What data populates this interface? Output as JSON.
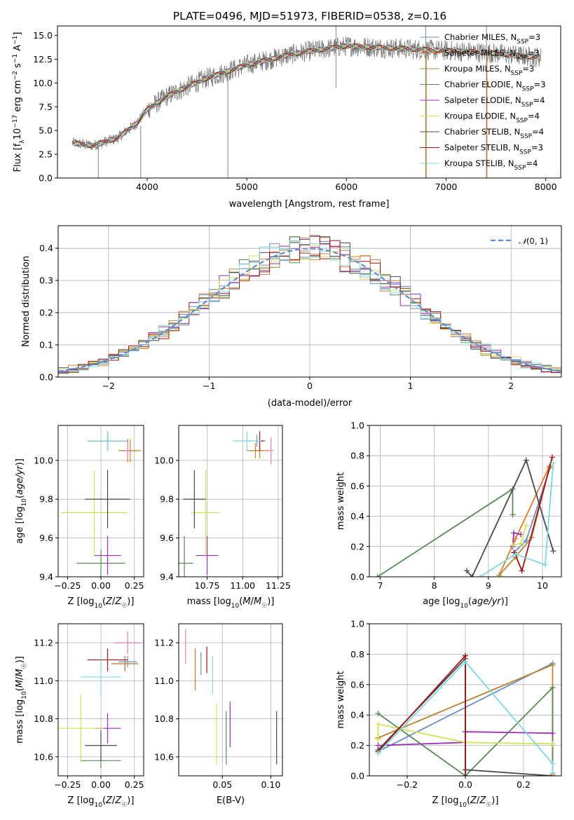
{
  "figure": {
    "title": "PLATE=0496, MJD=51973, FIBERID=0538, z=0.16"
  },
  "colors": {
    "Chabrier MILES": "#6b8cc2",
    "Salpeter MILES": "#e07b2e",
    "Kroupa MILES": "#b5893a",
    "Chabrier ELODIE": "#5a8a5a",
    "Salpeter ELODIE": "#9a2fb5",
    "Kroupa ELODIE": "#d4e25a",
    "Chabrier STELIB": "#4a4a4a",
    "Salpeter STELIB": "#a01515",
    "Kroupa STELIB": "#7fd9de",
    "pink": "#e87fb4",
    "data": "#7a7a7a",
    "normal": "#5b8bd9",
    "grid": "#b0b0b0"
  },
  "chart_data": [
    {
      "id": "spectrum",
      "type": "line",
      "title": "PLATE=0496, MJD=51973, FIBERID=0538, z=0.16",
      "xlabel": "wavelength [Angstrom, rest frame]",
      "ylabel": "Flux [f_λ 10^-17 erg cm^-2 s^-1 A^-1]",
      "xlim": [
        3100,
        8150
      ],
      "ylim": [
        0,
        16
      ],
      "xticks": [
        4000,
        5000,
        6000,
        7000,
        8000
      ],
      "yticks": [
        0.0,
        2.5,
        5.0,
        7.5,
        10.0,
        12.5,
        15.0
      ],
      "grid": false,
      "legend": "right",
      "legend_entries": [
        {
          "model": "Chabrier MILES",
          "nssp": "3"
        },
        {
          "model": "Salpeter MILES",
          "nssp": "3"
        },
        {
          "model": "Kroupa MILES",
          "nssp": "3"
        },
        {
          "model": "Chabrier ELODIE",
          "nssp": "3"
        },
        {
          "model": "Salpeter ELODIE",
          "nssp": "4"
        },
        {
          "model": "Kroupa ELODIE",
          "nssp": "4"
        },
        {
          "model": "Chabrier STELIB",
          "nssp": "4"
        },
        {
          "model": "Salpeter STELIB",
          "nssp": "3"
        },
        {
          "model": "Kroupa STELIB",
          "nssp": "4"
        }
      ],
      "continuum": {
        "x": [
          3250,
          3450,
          3700,
          3900,
          4000,
          4200,
          4400,
          4600,
          4800,
          5000,
          5200,
          5400,
          5600,
          5800,
          6000,
          6200,
          6400,
          6600,
          6800,
          7000,
          7200,
          7400,
          7600,
          7800,
          7950
        ],
        "y": [
          3.7,
          3.4,
          4.2,
          5.8,
          7.2,
          8.6,
          9.6,
          10.5,
          11.2,
          11.9,
          12.4,
          12.9,
          13.3,
          13.6,
          13.9,
          13.8,
          13.7,
          13.6,
          13.5,
          13.4,
          13.3,
          13.2,
          13.0,
          12.8,
          12.7
        ]
      },
      "data_spikes": [
        {
          "x": 3510,
          "y0": 0,
          "y1": 4.0
        },
        {
          "x": 3935,
          "y0": 0,
          "y1": 5.5
        },
        {
          "x": 4810,
          "y0": 0,
          "y1": 11.0
        },
        {
          "x": 5895,
          "y0": 9.5,
          "y1": 16
        },
        {
          "x": 6795,
          "y0": 0,
          "y1": 16
        },
        {
          "x": 7405,
          "y0": 0,
          "y1": 16
        }
      ]
    },
    {
      "id": "residuals",
      "type": "histogram",
      "xlabel": "(data-model)/error",
      "ylabel": "Normed distribution",
      "xlim": [
        -2.5,
        2.5
      ],
      "ylim": [
        0,
        0.47
      ],
      "xticks": [
        -2,
        -1,
        0,
        1,
        2
      ],
      "yticks": [
        0.0,
        0.1,
        0.2,
        0.3,
        0.4
      ],
      "grid": true,
      "legend": "top-right",
      "legend_label": "𝒩(0, 1)",
      "bin_width": 0.1
    },
    {
      "id": "age-vs-Z",
      "type": "errorbar",
      "xlabel": "Z [log10(Z/Z☉)]",
      "ylabel": "age [log10(age/yr)]",
      "xlim": [
        -0.32,
        0.32
      ],
      "ylim": [
        9.4,
        10.18
      ],
      "xticks": [
        "-0.25",
        "0.00",
        "0.25"
      ],
      "yticks": [
        "9.4",
        "9.6",
        "9.8",
        "10.0"
      ],
      "grid": true,
      "points": [
        {
          "model": "Chabrier MILES",
          "x": 0.05,
          "xerr": 0.15,
          "y": 10.1,
          "yerr": 0.05
        },
        {
          "model": "Salpeter MILES",
          "x": 0.22,
          "xerr": 0.08,
          "y": 10.05,
          "yerr": 0.06
        },
        {
          "model": "Kroupa MILES",
          "x": 0.2,
          "xerr": 0.07,
          "y": 10.05,
          "yerr": 0.06
        },
        {
          "model": "Chabrier ELODIE",
          "x": 0.0,
          "xerr": 0.18,
          "y": 9.47,
          "yerr": 0.07
        },
        {
          "model": "Salpeter ELODIE",
          "x": 0.05,
          "xerr": 0.1,
          "y": 9.51,
          "yerr": 0.1
        },
        {
          "model": "Kroupa ELODIE",
          "x": -0.05,
          "xerr": 0.25,
          "y": 9.73,
          "yerr": 0.22
        },
        {
          "model": "Chabrier STELIB",
          "x": 0.05,
          "xerr": 0.17,
          "y": 9.8,
          "yerr": 0.15
        },
        {
          "model": "Salpeter STELIB",
          "x": 0.05,
          "xerr": 0.15,
          "y": 10.1,
          "yerr": 0.05
        },
        {
          "model": "Kroupa STELIB",
          "x": 0.05,
          "xerr": 0.15,
          "y": 10.1,
          "yerr": 0.05
        },
        {
          "model": "pink",
          "x": 0.2,
          "xerr": 0.03,
          "y": 10.05,
          "yerr": 0.04
        }
      ]
    },
    {
      "id": "age-vs-mass",
      "type": "errorbar",
      "xlabel": "mass [log10(M/M☉)]",
      "ylabel": "",
      "xlim": [
        10.55,
        11.28
      ],
      "ylim": [
        9.4,
        10.18
      ],
      "xticks": [
        "10.75",
        "11.00",
        "11.25"
      ],
      "yticks": [
        "9.4",
        "9.6",
        "9.8",
        "10.0"
      ],
      "grid": true,
      "points": [
        {
          "model": "Chabrier MILES",
          "x": 11.1,
          "xerr": 0.06,
          "y": 10.1,
          "yerr": 0.03
        },
        {
          "model": "Salpeter MILES",
          "x": 11.12,
          "xerr": 0.07,
          "y": 10.05,
          "yerr": 0.04
        },
        {
          "model": "Kroupa MILES",
          "x": 11.09,
          "xerr": 0.06,
          "y": 10.05,
          "yerr": 0.04
        },
        {
          "model": "Chabrier ELODIE",
          "x": 10.59,
          "xerr": 0.06,
          "y": 9.47,
          "yerr": 0.14
        },
        {
          "model": "Salpeter ELODIE",
          "x": 10.75,
          "xerr": 0.08,
          "y": 9.51,
          "yerr": 0.1
        },
        {
          "model": "Kroupa ELODIE",
          "x": 10.74,
          "xerr": 0.1,
          "y": 9.73,
          "yerr": 0.22
        },
        {
          "model": "Chabrier STELIB",
          "x": 10.66,
          "xerr": 0.08,
          "y": 9.8,
          "yerr": 0.15
        },
        {
          "model": "Salpeter STELIB",
          "x": 11.12,
          "xerr": 0.03,
          "y": 10.1,
          "yerr": 0.05
        },
        {
          "model": "Kroupa STELIB",
          "x": 11.03,
          "xerr": 0.1,
          "y": 10.1,
          "yerr": 0.05
        },
        {
          "model": "pink",
          "x": 11.2,
          "xerr": 0.02,
          "y": 10.05,
          "yerr": 0.07
        }
      ]
    },
    {
      "id": "weight-vs-age",
      "type": "line",
      "xlabel": "age [log10(age/yr)]",
      "ylabel": "mass weight",
      "xlim": [
        6.8,
        10.35
      ],
      "ylim": [
        0,
        1
      ],
      "xticks": [
        7,
        8,
        9,
        10
      ],
      "yticks": [
        "0.0",
        "0.2",
        "0.4",
        "0.6",
        "0.8",
        "1.0"
      ],
      "grid": true,
      "series": [
        {
          "model": "Chabrier MILES",
          "x": [
            9.47,
            9.7,
            10.15
          ],
          "y": [
            0.16,
            0.24,
            0.73
          ]
        },
        {
          "model": "Salpeter MILES",
          "x": [
            9.2,
            9.5,
            10.13
          ],
          "y": [
            0.01,
            0.25,
            0.73
          ]
        },
        {
          "model": "Kroupa MILES",
          "x": [
            9.2,
            9.5,
            9.8,
            10.13
          ],
          "y": [
            0.01,
            0.13,
            0.26,
            0.72
          ]
        },
        {
          "model": "Chabrier ELODIE",
          "x": [
            6.95,
            9.45,
            9.45
          ],
          "y": [
            0.0,
            0.58,
            0.41
          ]
        },
        {
          "model": "Salpeter ELODIE",
          "x": [
            9.45,
            9.47,
            9.6
          ],
          "y": [
            0.2,
            0.29,
            0.28
          ]
        },
        {
          "model": "Kroupa ELODIE",
          "x": [
            9.45,
            9.6,
            9.7
          ],
          "y": [
            0.21,
            0.22,
            0.34
          ]
        },
        {
          "model": "Chabrier STELIB",
          "x": [
            8.6,
            8.7,
            9.7,
            10.2
          ],
          "y": [
            0.04,
            0.0,
            0.77,
            0.17
          ]
        },
        {
          "model": "Salpeter STELIB",
          "x": [
            9.48,
            9.62,
            10.18
          ],
          "y": [
            0.16,
            0.04,
            0.79
          ]
        },
        {
          "model": "Kroupa STELIB",
          "x": [
            8.85,
            9.5,
            10.05,
            10.2
          ],
          "y": [
            0.0,
            0.15,
            0.08,
            0.75
          ]
        }
      ]
    },
    {
      "id": "mass-vs-Z",
      "type": "errorbar",
      "xlabel": "Z [log10(Z/Z☉)]",
      "ylabel": "mass [log10(M/M☉)]",
      "xlim": [
        -0.32,
        0.32
      ],
      "ylim": [
        10.5,
        11.3
      ],
      "xticks": [
        "-0.25",
        "0.00",
        "0.25"
      ],
      "yticks": [
        "10.6",
        "10.8",
        "11.0",
        "11.2"
      ],
      "grid": true,
      "points": [
        {
          "model": "Chabrier MILES",
          "x": 0.2,
          "xerr": 0.07,
          "y": 11.1,
          "yerr": 0.03
        },
        {
          "model": "Salpeter MILES",
          "x": 0.18,
          "xerr": 0.1,
          "y": 11.09,
          "yerr": 0.04
        },
        {
          "model": "Kroupa MILES",
          "x": 0.18,
          "xerr": 0.1,
          "y": 11.09,
          "yerr": 0.04
        },
        {
          "model": "Chabrier ELODIE",
          "x": 0.0,
          "xerr": 0.15,
          "y": 10.58,
          "yerr": 0.04
        },
        {
          "model": "Salpeter ELODIE",
          "x": 0.05,
          "xerr": 0.1,
          "y": 10.75,
          "yerr": 0.08
        },
        {
          "model": "Kroupa ELODIE",
          "x": -0.15,
          "xerr": 0.17,
          "y": 10.75,
          "yerr": 0.18
        },
        {
          "model": "Chabrier STELIB",
          "x": 0.0,
          "xerr": 0.12,
          "y": 10.66,
          "yerr": 0.08
        },
        {
          "model": "Salpeter STELIB",
          "x": 0.05,
          "xerr": 0.15,
          "y": 11.11,
          "yerr": 0.06
        },
        {
          "model": "Kroupa STELIB",
          "x": 0.0,
          "xerr": 0.15,
          "y": 11.02,
          "yerr": 0.09
        },
        {
          "model": "pink",
          "x": 0.2,
          "xerr": 0.1,
          "y": 11.2,
          "yerr": 0.06
        }
      ]
    },
    {
      "id": "mass-vs-ebv",
      "type": "errorbar",
      "xlabel": "E(B-V)",
      "ylabel": "",
      "xlim": [
        0.005,
        0.112
      ],
      "ylim": [
        10.5,
        11.3
      ],
      "xticks": [
        "0.05",
        "0.10"
      ],
      "yticks": [
        "10.6",
        "10.8",
        "11.0",
        "11.2"
      ],
      "grid": true,
      "points": [
        {
          "model": "Chabrier MILES",
          "x": 0.028,
          "y": 11.09,
          "yerr": 0.06
        },
        {
          "model": "Salpeter MILES",
          "x": 0.022,
          "y": 11.06,
          "yerr": 0.11
        },
        {
          "model": "Kroupa MILES",
          "x": 0.022,
          "y": 11.06,
          "yerr": 0.11
        },
        {
          "model": "Chabrier ELODIE",
          "x": 0.054,
          "y": 10.7,
          "yerr": 0.14
        },
        {
          "model": "Salpeter ELODIE",
          "x": 0.058,
          "y": 10.77,
          "yerr": 0.12
        },
        {
          "model": "Kroupa ELODIE",
          "x": 0.044,
          "y": 10.72,
          "yerr": 0.16
        },
        {
          "model": "Chabrier STELIB",
          "x": 0.106,
          "y": 10.7,
          "yerr": 0.14
        },
        {
          "model": "Salpeter STELIB",
          "x": 0.034,
          "y": 11.11,
          "yerr": 0.07
        },
        {
          "model": "Kroupa STELIB",
          "x": 0.04,
          "y": 11.03,
          "yerr": 0.1
        },
        {
          "model": "pink",
          "x": 0.012,
          "y": 11.18,
          "yerr": 0.09
        }
      ]
    },
    {
      "id": "weight-vs-Z",
      "type": "line",
      "xlabel": "Z [log10(Z/Z☉)]",
      "ylabel": "mass weight",
      "xlim": [
        -0.33,
        0.33
      ],
      "ylim": [
        0,
        1
      ],
      "xticks": [
        "-0.2",
        "0.0",
        "0.2"
      ],
      "yticks": [
        "0.0",
        "0.2",
        "0.4",
        "0.6",
        "0.8",
        "1.0"
      ],
      "grid": true,
      "series": [
        {
          "model": "Chabrier MILES",
          "x": [
            -0.3,
            0.3
          ],
          "y": [
            0.16,
            0.74
          ]
        },
        {
          "model": "Salpeter MILES",
          "x": [
            -0.3,
            0.3,
            0.3
          ],
          "y": [
            0.25,
            0.73,
            0.01
          ]
        },
        {
          "model": "Kroupa MILES",
          "x": [
            -0.3,
            0.3
          ],
          "y": [
            0.25,
            0.73
          ]
        },
        {
          "model": "Chabrier ELODIE",
          "x": [
            -0.3,
            0.0,
            0.3,
            0.3
          ],
          "y": [
            0.41,
            0.0,
            0.58,
            0.0
          ]
        },
        {
          "model": "Salpeter ELODIE",
          "x": [
            -0.3,
            0.0,
            0.0,
            0.3
          ],
          "y": [
            0.2,
            0.22,
            0.29,
            0.28
          ]
        },
        {
          "model": "Kroupa ELODIE",
          "x": [
            -0.3,
            -0.3,
            0.0,
            0.3
          ],
          "y": [
            0.24,
            0.34,
            0.22,
            0.21
          ]
        },
        {
          "model": "Chabrier STELIB",
          "x": [
            -0.3,
            0.0,
            0.0,
            0.3
          ],
          "y": [
            0.17,
            0.77,
            0.04,
            0.0
          ]
        },
        {
          "model": "Salpeter STELIB",
          "x": [
            -0.3,
            0.0,
            0.0
          ],
          "y": [
            0.16,
            0.79,
            0.0
          ]
        },
        {
          "model": "Kroupa STELIB",
          "x": [
            -0.3,
            0.0,
            0.3,
            0.3
          ],
          "y": [
            0.15,
            0.75,
            0.08,
            0.02
          ]
        }
      ]
    }
  ]
}
